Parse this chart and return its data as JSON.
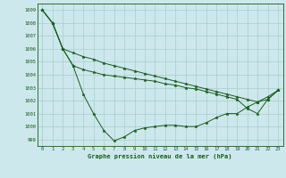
{
  "title": "Graphe pression niveau de la mer (hPa)",
  "background_color": "#cce8ec",
  "grid_color": "#aacccc",
  "line_color": "#1a5c1a",
  "marker_color": "#1a5c1a",
  "ylim": [
    998.5,
    1009.5
  ],
  "yticks": [
    999,
    1000,
    1001,
    1002,
    1003,
    1004,
    1005,
    1006,
    1007,
    1008,
    1009
  ],
  "xlim": [
    -0.5,
    23.5
  ],
  "xticks": [
    0,
    1,
    2,
    3,
    4,
    5,
    6,
    7,
    8,
    9,
    10,
    11,
    12,
    13,
    14,
    15,
    16,
    17,
    18,
    19,
    20,
    21,
    22,
    23
  ],
  "series": [
    [
      1009.0,
      1008.0,
      1006.0,
      1005.7,
      1005.4,
      1005.2,
      1004.9,
      1004.7,
      1004.5,
      1004.3,
      1004.1,
      1003.9,
      1003.7,
      1003.5,
      1003.3,
      1003.1,
      1002.9,
      1002.7,
      1002.5,
      1002.3,
      1002.1,
      1001.9,
      1002.3,
      1002.8
    ],
    [
      1009.0,
      1008.0,
      1006.0,
      1004.7,
      1004.4,
      1004.2,
      1004.0,
      1003.9,
      1003.8,
      1003.7,
      1003.6,
      1003.5,
      1003.3,
      1003.2,
      1003.0,
      1002.9,
      1002.7,
      1002.5,
      1002.3,
      1002.1,
      1001.4,
      1001.0,
      1002.1,
      1002.8
    ],
    [
      1009.0,
      1008.0,
      1006.0,
      1004.7,
      1002.5,
      1001.0,
      999.7,
      998.9,
      999.2,
      999.7,
      999.9,
      1000.0,
      1000.1,
      1000.1,
      1000.0,
      1000.0,
      1000.3,
      1000.7,
      1001.0,
      1001.0,
      1001.5,
      1001.9,
      1002.1,
      1002.8
    ]
  ]
}
